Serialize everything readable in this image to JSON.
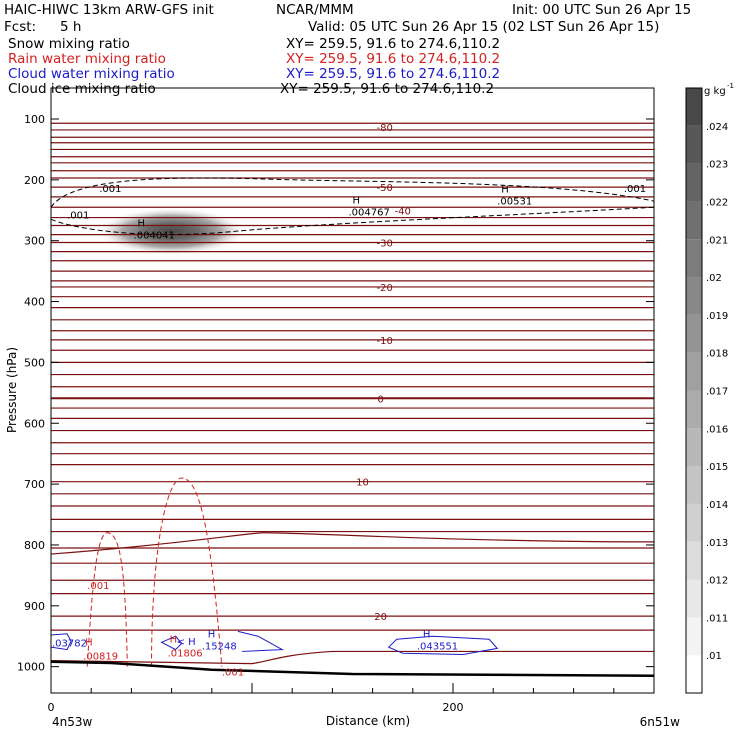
{
  "header": {
    "title": "HAIC-HIWC 13km ARW-GFS init",
    "center": "NCAR/MMM",
    "init": "Init: 00 UTC Sun 26 Apr 15",
    "fcst_label": "Fcst:",
    "fcst_value": "5 h",
    "valid": "Valid: 05 UTC Sun 26 Apr 15 (02 LST Sun 26 Apr 15)",
    "fields": [
      {
        "name": "Snow mixing ratio",
        "xy": "XY= 259.5, 91.6 to 274.6,110.2",
        "color": "#000000"
      },
      {
        "name": "Rain water mixing ratio",
        "xy": "XY= 259.5, 91.6 to 274.6,110.2",
        "color": "#d42020"
      },
      {
        "name": "Cloud water mixing ratio",
        "xy": "XY= 259.5, 91.6 to 274.6,110.2",
        "color": "#1a1ac8"
      },
      {
        "name": "Cloud ice mixing ratio",
        "xy": "XY= 259.5, 91.6 to 274.6,110.2",
        "color": "#000000"
      }
    ]
  },
  "chart_data": {
    "type": "cross-section",
    "xlabel": "Distance (km)",
    "ylabel": "Pressure (hPa)",
    "xlim": [
      0,
      300
    ],
    "ylim": [
      1050,
      50
    ],
    "x_ticks": [
      0,
      200
    ],
    "y_ticks": [
      100,
      200,
      300,
      400,
      500,
      600,
      700,
      800,
      900,
      1000
    ],
    "x_endpoints": [
      "4n53w",
      "6n51w"
    ],
    "colorbar": {
      "unit": "g kg",
      "unit_exp": "-1",
      "levels": [
        ".01",
        ".011",
        ".012",
        ".013",
        ".014",
        ".015",
        ".016",
        ".017",
        ".018",
        ".019",
        ".02",
        ".021",
        ".022",
        ".023",
        ".024"
      ],
      "colors": [
        "#ffffff",
        "#f4f4f4",
        "#e8e8e8",
        "#dcdcdc",
        "#d0d0d0",
        "#c4c4c4",
        "#b8b8b8",
        "#acacac",
        "#a0a0a0",
        "#949494",
        "#888888",
        "#7c7c7c",
        "#707070",
        "#646464",
        "#585858",
        "#484848"
      ]
    },
    "temperature_contours": {
      "color": "#7a1010",
      "labels": [
        {
          "text": "-80",
          "x": 166,
          "p": 113
        },
        {
          "text": "-50",
          "x": 166,
          "p": 212
        },
        {
          "text": "-40",
          "x": 175,
          "p": 250
        },
        {
          "text": "-30",
          "x": 166,
          "p": 303
        },
        {
          "text": "-20",
          "x": 166,
          "p": 376
        },
        {
          "text": "-10",
          "x": 166,
          "p": 463
        },
        {
          "text": "0",
          "x": 164,
          "p": 559
        },
        {
          "text": "10",
          "x": 155,
          "p": 696
        },
        {
          "text": "20",
          "x": 164,
          "p": 917
        }
      ]
    },
    "snow_max": {
      "label": "H",
      "value": ".004041",
      "x": 56,
      "p": 290
    },
    "snow_contour_label": ".001",
    "ice_maxima": [
      {
        "label": "H",
        "value": ".004767",
        "x": 148,
        "p": 252
      },
      {
        "label": "H",
        "value": ".00531",
        "x": 222,
        "p": 234
      }
    ],
    "ice_contour_labels": [
      {
        "text": ".001",
        "x": 24,
        "p": 213
      },
      {
        "text": ".001",
        "x": 8,
        "p": 257
      },
      {
        "text": ".001",
        "x": 285,
        "p": 213
      }
    ],
    "rain_maxima": [
      {
        "label": "H",
        "value": ".00819",
        "x": 16,
        "p": 985
      },
      {
        "label": "H",
        "value": ".01806",
        "x": 58,
        "p": 980
      }
    ],
    "rain_contour_labels": [
      {
        "text": ".001",
        "x": 18,
        "p": 866
      },
      {
        "text": ".001",
        "x": 85,
        "p": 1008
      }
    ],
    "cloudwater_maxima": [
      {
        "label": "H",
        "value": ".15248",
        "x": 75,
        "p": 965
      },
      {
        "label": "H",
        "value": ".043551",
        "x": 182,
        "p": 965
      }
    ],
    "cloudwater_misc": [
      {
        "text": ".03782",
        "x": 0,
        "p": 960
      },
      {
        "text": "< H",
        "x": 62,
        "p": 958
      }
    ]
  }
}
